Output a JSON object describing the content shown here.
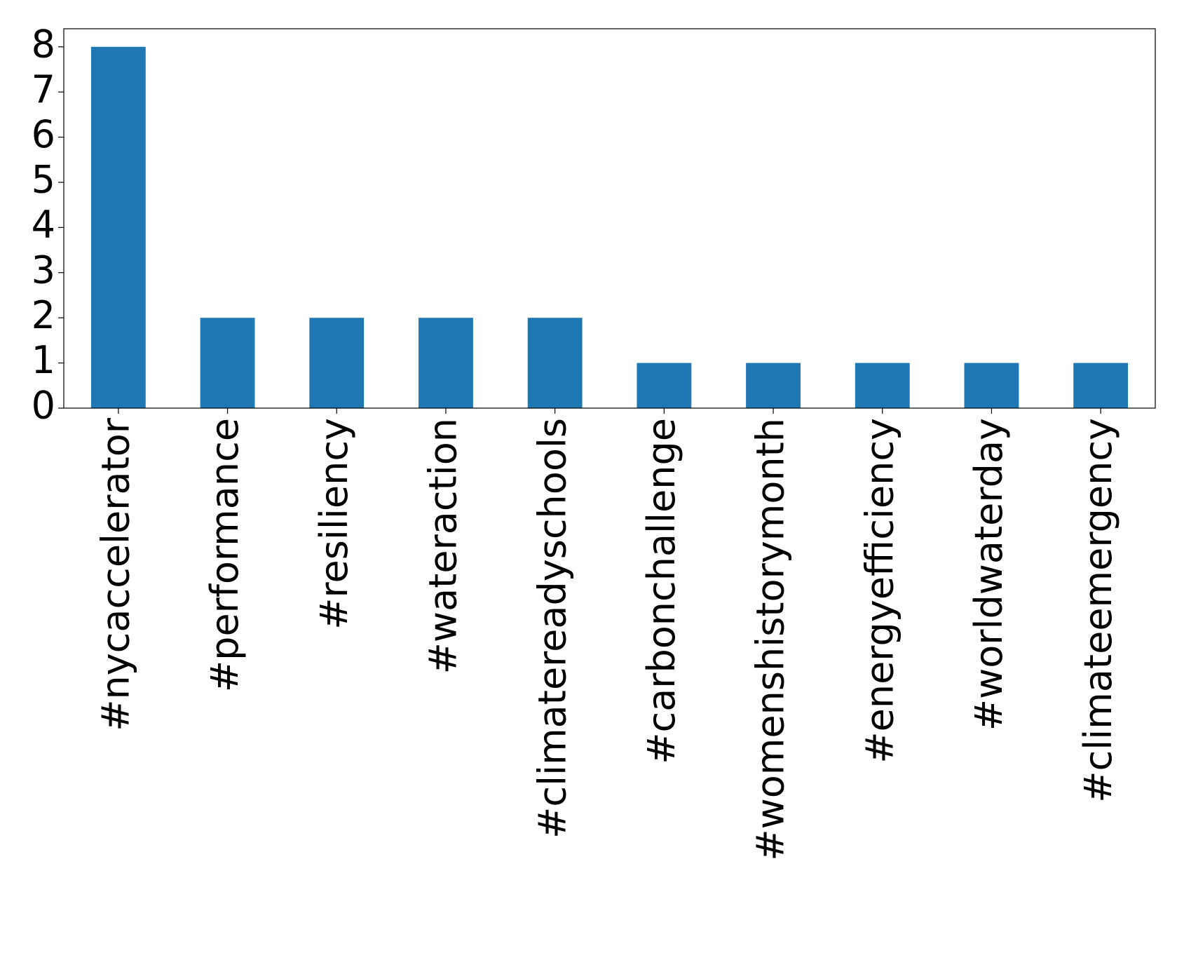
{
  "chart_data": {
    "type": "bar",
    "categories": [
      "#nycaccelerator",
      "#performance",
      "#resiliency",
      "#wateraction",
      "#climatereadyschools",
      "#carbonchallenge",
      "#womenshistorymonth",
      "#energyefficiency",
      "#worldwaterday",
      "#climateemergency"
    ],
    "values": [
      8,
      2,
      2,
      2,
      2,
      1,
      1,
      1,
      1,
      1
    ],
    "color": "#1f77b4",
    "ylim": [
      0,
      8.4
    ],
    "yticks": [
      0,
      1,
      2,
      3,
      4,
      5,
      6,
      7,
      8
    ],
    "grid": false
  }
}
